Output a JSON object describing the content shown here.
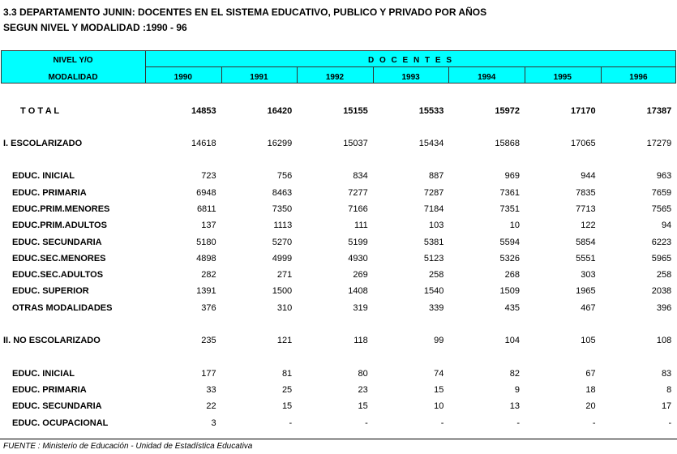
{
  "header": {
    "title": "3.3  DEPARTAMENTO JUNIN: DOCENTES EN EL SISTEMA EDUCATIVO, PUBLICO Y PRIVADO  POR AÑOS",
    "subtitle": "SEGUN NIVEL Y MODALIDAD :1990 - 96"
  },
  "table": {
    "corner_top": "NIVEL  Y/O",
    "corner_bottom": "MODALIDAD",
    "group": "D O C E N T E S",
    "years": [
      "1990",
      "1991",
      "1992",
      "1993",
      "1994",
      "1995",
      "1996"
    ],
    "rows": [
      {
        "label": "T O T A L",
        "values": [
          14853,
          16420,
          15155,
          15533,
          15972,
          17170,
          17387
        ]
      },
      {
        "label": "I. ESCOLARIZADO",
        "values": [
          14618,
          16299,
          15037,
          15434,
          15868,
          17065,
          17279
        ]
      },
      {
        "label": "EDUC. INICIAL",
        "values": [
          723,
          756,
          834,
          887,
          969,
          944,
          963
        ]
      },
      {
        "label": "EDUC. PRIMARIA",
        "values": [
          6948,
          8463,
          7277,
          7287,
          7361,
          7835,
          7659
        ]
      },
      {
        "label": "EDUC.PRIM.MENORES",
        "values": [
          6811,
          7350,
          7166,
          7184,
          7351,
          7713,
          7565
        ]
      },
      {
        "label": "EDUC.PRIM.ADULTOS",
        "values": [
          137,
          1113,
          111,
          103,
          10,
          122,
          94
        ]
      },
      {
        "label": "EDUC. SECUNDARIA",
        "values": [
          5180,
          5270,
          5199,
          5381,
          5594,
          5854,
          6223
        ]
      },
      {
        "label": "EDUC.SEC.MENORES",
        "values": [
          4898,
          4999,
          4930,
          5123,
          5326,
          5551,
          5965
        ]
      },
      {
        "label": "EDUC.SEC.ADULTOS",
        "values": [
          282,
          271,
          269,
          258,
          268,
          303,
          258
        ]
      },
      {
        "label": "EDUC. SUPERIOR",
        "values": [
          1391,
          1500,
          1408,
          1540,
          1509,
          1965,
          2038
        ]
      },
      {
        "label": "OTRAS MODALIDADES",
        "values": [
          376,
          310,
          319,
          339,
          435,
          467,
          396
        ]
      },
      {
        "label": "II. NO ESCOLARIZADO",
        "values": [
          235,
          121,
          118,
          99,
          104,
          105,
          108
        ]
      },
      {
        "label": "EDUC. INICIAL",
        "values": [
          177,
          81,
          80,
          74,
          82,
          67,
          83
        ]
      },
      {
        "label": "EDUC. PRIMARIA",
        "values": [
          33,
          25,
          23,
          15,
          9,
          18,
          8
        ]
      },
      {
        "label": "EDUC. SECUNDARIA",
        "values": [
          22,
          15,
          15,
          10,
          13,
          20,
          17
        ]
      },
      {
        "label": "EDUC. OCUPACIONAL",
        "values": [
          3,
          "-",
          "-",
          "-",
          "-",
          "-",
          "-"
        ]
      }
    ]
  },
  "footer": {
    "source": "FUENTE : Ministerio de Educación - Unidad de Estadística Educativa"
  }
}
